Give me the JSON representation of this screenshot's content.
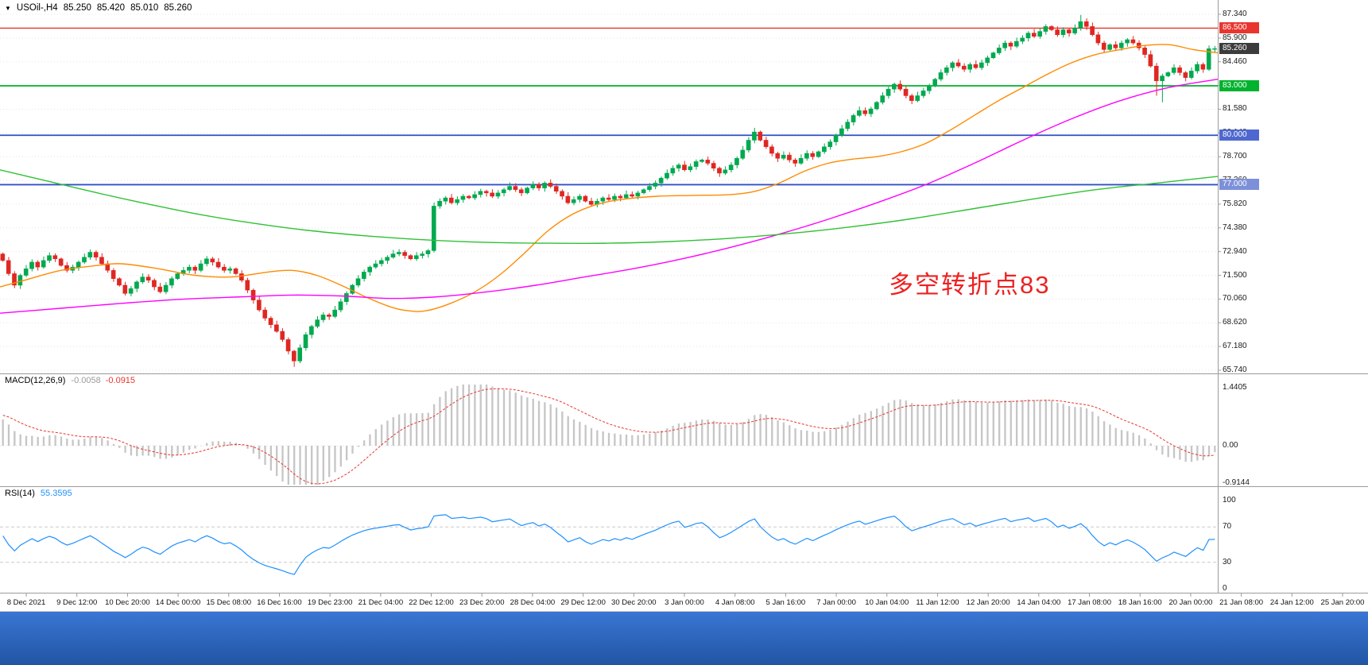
{
  "header": {
    "symbol": "USOil-,H4",
    "open": "85.250",
    "high": "85.420",
    "low": "85.010",
    "close": "85.260",
    "marker": "▼"
  },
  "annotation": {
    "text": "多空转折点83",
    "color": "#ec2222"
  },
  "colors": {
    "separator": "#9b9b9b",
    "grid": "#e4e4e4",
    "axis_text": "#1a1a1a",
    "bottom_bar_top": "#3a76d4",
    "bottom_bar_bottom": "#2155a4"
  },
  "chart_data": [
    {
      "type": "candlestick",
      "title": "USOil- H4 candlestick chart",
      "x_labels": [
        "8 Dec 2021",
        "9 Dec 12:00",
        "10 Dec 20:00",
        "14 Dec 00:00",
        "15 Dec 08:00",
        "16 Dec 16:00",
        "19 Dec 23:00",
        "21 Dec 04:00",
        "22 Dec 12:00",
        "23 Dec 20:00",
        "28 Dec 04:00",
        "29 Dec 12:00",
        "30 Dec 20:00",
        "3 Jan 00:00",
        "4 Jan 08:00",
        "5 Jan 16:00",
        "7 Jan 00:00",
        "10 Jan 04:00",
        "11 Jan 12:00",
        "12 Jan 20:00",
        "14 Jan 04:00",
        "17 Jan 08:00",
        "18 Jan 16:00",
        "20 Jan 00:00",
        "21 Jan 08:00",
        "24 Jan 12:00",
        "25 Jan 20:00"
      ],
      "ylim": [
        65.74,
        87.34
      ],
      "y_tick_labels": [
        "87.340",
        "85.900",
        "84.460",
        "83.020",
        "81.580",
        "80.140",
        "78.700",
        "77.260",
        "75.820",
        "74.380",
        "72.940",
        "71.500",
        "70.060",
        "68.620",
        "67.180",
        "65.740"
      ],
      "up_color": "#00a94f",
      "down_color": "#df2722",
      "open_first": 72.8,
      "closes": [
        72.4,
        71.6,
        70.9,
        71.5,
        71.9,
        72.3,
        72.0,
        72.4,
        72.7,
        72.5,
        72.1,
        71.8,
        72.0,
        72.3,
        72.6,
        72.9,
        72.6,
        72.2,
        71.8,
        71.3,
        70.9,
        70.4,
        70.7,
        71.1,
        71.4,
        71.2,
        70.8,
        70.5,
        70.9,
        71.3,
        71.6,
        71.8,
        72.0,
        71.8,
        72.2,
        72.5,
        72.3,
        72.0,
        71.8,
        71.9,
        71.6,
        71.2,
        70.6,
        70.0,
        69.4,
        68.9,
        68.5,
        68.1,
        67.6,
        66.9,
        66.3,
        67.1,
        67.9,
        68.4,
        68.8,
        69.1,
        69.0,
        69.4,
        69.9,
        70.4,
        70.9,
        71.3,
        71.7,
        72.0,
        72.2,
        72.4,
        72.6,
        72.8,
        72.9,
        72.7,
        72.5,
        72.7,
        72.8,
        73.0,
        75.7,
        76.0,
        76.2,
        75.9,
        76.1,
        76.3,
        76.2,
        76.4,
        76.6,
        76.5,
        76.3,
        76.5,
        76.7,
        76.9,
        76.7,
        76.5,
        76.8,
        77.0,
        76.8,
        77.1,
        76.9,
        76.6,
        76.3,
        75.9,
        76.1,
        76.3,
        76.0,
        75.8,
        76.0,
        76.2,
        76.1,
        76.3,
        76.2,
        76.4,
        76.3,
        76.5,
        76.7,
        76.9,
        77.1,
        77.4,
        77.7,
        78.0,
        78.2,
        77.9,
        78.1,
        78.4,
        78.5,
        78.3,
        78.0,
        77.7,
        77.9,
        78.2,
        78.6,
        79.1,
        79.7,
        80.2,
        79.7,
        79.3,
        78.9,
        78.6,
        78.8,
        78.5,
        78.3,
        78.6,
        78.9,
        78.7,
        79.0,
        79.3,
        79.6,
        80.0,
        80.4,
        80.8,
        81.2,
        81.5,
        81.3,
        81.6,
        82.0,
        82.4,
        82.8,
        83.1,
        82.8,
        82.4,
        82.1,
        82.4,
        82.7,
        83.0,
        83.4,
        83.8,
        84.1,
        84.4,
        84.2,
        84.0,
        84.3,
        84.1,
        84.4,
        84.7,
        85.0,
        85.3,
        85.6,
        85.4,
        85.7,
        85.9,
        86.2,
        86.0,
        86.3,
        86.6,
        86.4,
        86.1,
        86.4,
        86.2,
        86.5,
        86.9,
        86.6,
        86.1,
        85.6,
        85.2,
        85.5,
        85.3,
        85.6,
        85.8,
        85.6,
        85.3,
        84.9,
        84.2,
        83.3,
        83.6,
        83.8,
        84.1,
        83.8,
        83.5,
        83.9,
        84.3,
        84.0,
        85.25,
        85.26
      ],
      "high_overrides": {
        "129": 80.45,
        "185": 87.3,
        "186": 87.1,
        "207": 85.45,
        "208": 85.42
      },
      "low_overrides": {
        "50": 65.95,
        "198": 82.4,
        "199": 82.0,
        "208": 85.01
      },
      "overlays": [
        {
          "name": "ma-fast-orange",
          "color": "#ff8a00",
          "points": [
            [
              0,
              70.8
            ],
            [
              0.02,
              71.2
            ],
            [
              0.05,
              71.8
            ],
            [
              0.08,
              72.1
            ],
            [
              0.1,
              72.2
            ],
            [
              0.13,
              71.9
            ],
            [
              0.16,
              71.5
            ],
            [
              0.19,
              71.4
            ],
            [
              0.22,
              71.7
            ],
            [
              0.24,
              71.8
            ],
            [
              0.26,
              71.5
            ],
            [
              0.28,
              70.9
            ],
            [
              0.3,
              70.2
            ],
            [
              0.32,
              69.6
            ],
            [
              0.335,
              69.35
            ],
            [
              0.35,
              69.35
            ],
            [
              0.37,
              69.8
            ],
            [
              0.39,
              70.5
            ],
            [
              0.41,
              71.5
            ],
            [
              0.43,
              72.8
            ],
            [
              0.45,
              74.2
            ],
            [
              0.47,
              75.2
            ],
            [
              0.49,
              75.8
            ],
            [
              0.51,
              76.1
            ],
            [
              0.54,
              76.3
            ],
            [
              0.57,
              76.35
            ],
            [
              0.6,
              76.4
            ],
            [
              0.62,
              76.6
            ],
            [
              0.64,
              77.1
            ],
            [
              0.66,
              77.8
            ],
            [
              0.68,
              78.3
            ],
            [
              0.7,
              78.55
            ],
            [
              0.72,
              78.7
            ],
            [
              0.74,
              79.0
            ],
            [
              0.76,
              79.5
            ],
            [
              0.78,
              80.3
            ],
            [
              0.8,
              81.2
            ],
            [
              0.82,
              82.1
            ],
            [
              0.84,
              82.9
            ],
            [
              0.86,
              83.7
            ],
            [
              0.88,
              84.4
            ],
            [
              0.9,
              84.9
            ],
            [
              0.92,
              85.2
            ],
            [
              0.94,
              85.45
            ],
            [
              0.96,
              85.5
            ],
            [
              0.98,
              85.2
            ],
            [
              1,
              85.0
            ]
          ]
        },
        {
          "name": "ma-mid-magenta",
          "color": "#ff00ff",
          "points": [
            [
              0,
              69.2
            ],
            [
              0.05,
              69.5
            ],
            [
              0.1,
              69.8
            ],
            [
              0.15,
              70.05
            ],
            [
              0.2,
              70.2
            ],
            [
              0.24,
              70.3
            ],
            [
              0.28,
              70.25
            ],
            [
              0.32,
              70.1
            ],
            [
              0.36,
              70.2
            ],
            [
              0.4,
              70.5
            ],
            [
              0.44,
              70.9
            ],
            [
              0.48,
              71.4
            ],
            [
              0.52,
              71.9
            ],
            [
              0.56,
              72.5
            ],
            [
              0.6,
              73.2
            ],
            [
              0.64,
              74.0
            ],
            [
              0.68,
              74.9
            ],
            [
              0.72,
              75.9
            ],
            [
              0.76,
              77.0
            ],
            [
              0.8,
              78.3
            ],
            [
              0.84,
              79.7
            ],
            [
              0.88,
              81.0
            ],
            [
              0.92,
              82.1
            ],
            [
              0.96,
              82.9
            ],
            [
              1,
              83.4
            ]
          ]
        },
        {
          "name": "ma-slow-green",
          "color": "#2fc134",
          "points": [
            [
              0,
              77.9
            ],
            [
              0.04,
              77.2
            ],
            [
              0.08,
              76.5
            ],
            [
              0.12,
              75.85
            ],
            [
              0.16,
              75.25
            ],
            [
              0.2,
              74.75
            ],
            [
              0.25,
              74.25
            ],
            [
              0.3,
              73.9
            ],
            [
              0.35,
              73.65
            ],
            [
              0.4,
              73.5
            ],
            [
              0.45,
              73.45
            ],
            [
              0.5,
              73.45
            ],
            [
              0.55,
              73.55
            ],
            [
              0.6,
              73.75
            ],
            [
              0.65,
              74.05
            ],
            [
              0.7,
              74.45
            ],
            [
              0.75,
              74.95
            ],
            [
              0.8,
              75.55
            ],
            [
              0.85,
              76.15
            ],
            [
              0.9,
              76.7
            ],
            [
              0.95,
              77.1
            ],
            [
              1,
              77.5
            ]
          ]
        }
      ],
      "hlines": [
        {
          "price": 86.5,
          "color": "#e8352e",
          "width": 1.4,
          "tag": "86.500",
          "tag_bg": "#e8352e"
        },
        {
          "price": 83.0,
          "color": "#00b22d",
          "width": 1.8,
          "tag": "83.000",
          "tag_bg": "#00b22d"
        },
        {
          "price": 80.0,
          "color": "#2f51c4",
          "width": 1.8,
          "tag": "80.000",
          "tag_bg": "#4f68cf"
        },
        {
          "price": 77.0,
          "color": "#2f51c4",
          "width": 1.8,
          "tag": "77.000",
          "tag_bg": "#7c90da"
        }
      ],
      "current_price_tag": {
        "value": "85.260",
        "price": 85.26,
        "bg": "#3c3c3c"
      }
    },
    {
      "type": "macd",
      "label": "MACD(12,26,9)",
      "value_main": "-0.0058",
      "value_signal": "-0.0915",
      "params": [
        12,
        26,
        9
      ],
      "ylim": [
        -0.9144,
        1.4405
      ],
      "axis_labels": [
        {
          "text": "1.4405",
          "value": 1.4405
        },
        {
          "text": "0.00",
          "value": 0
        },
        {
          "text": "-0.9144",
          "value": -0.9144
        }
      ],
      "seeds": {
        "ema12": 72.62,
        "ema26": 71.9,
        "signal": 0.78
      },
      "histogram_color": "#c6c6c6",
      "signal_color": "#e8352e"
    },
    {
      "type": "rsi",
      "label": "RSI(14)",
      "value": "55.3595",
      "period": 14,
      "ylim": [
        0,
        100
      ],
      "levels": [
        70,
        30
      ],
      "axis_labels": [
        {
          "text": "100",
          "value": 100
        },
        {
          "text": "70",
          "value": 70
        },
        {
          "text": "30",
          "value": 30
        },
        {
          "text": "0",
          "value": 0
        }
      ],
      "line_color": "#1e90ff",
      "seeds": {
        "avg_gain": 0.18,
        "avg_loss": 0.12
      }
    }
  ]
}
